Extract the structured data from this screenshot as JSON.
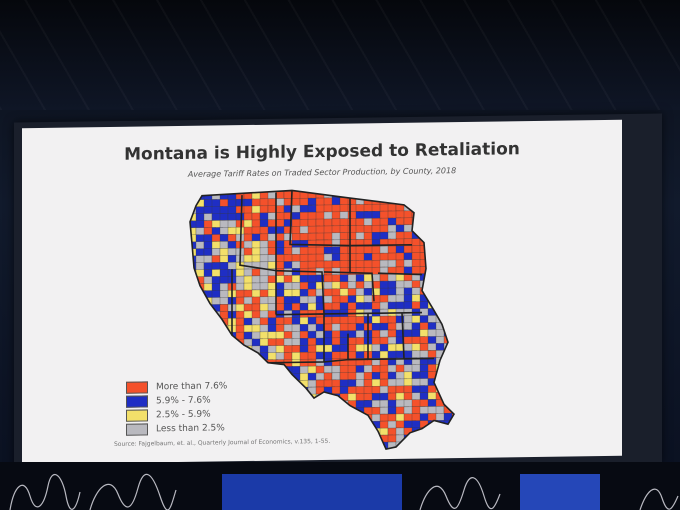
{
  "slide": {
    "title": "Montana is Highly Exposed to Retaliation",
    "subtitle": "Average Tariff Rates on Traded Sector Production, by County, 2018",
    "source": "Source:   Fajgelbaum, et. al., Quarterly Journal of Economics, v.135, 1-55."
  },
  "legend": {
    "items": [
      {
        "label": "More than 7.6%",
        "color": "#f4512b"
      },
      {
        "label": "5.9% - 7.6%",
        "color": "#1f2ec4"
      },
      {
        "label": "2.5% - 5.9%",
        "color": "#f3e06a"
      },
      {
        "label": "Less than 2.5%",
        "color": "#b9b9bf"
      }
    ]
  },
  "colors": {
    "high": "#f4512b",
    "mid_high": "#1f2ec4",
    "mid_low": "#f3e06a",
    "low": "#b9b9bf",
    "border": "#222222"
  }
}
